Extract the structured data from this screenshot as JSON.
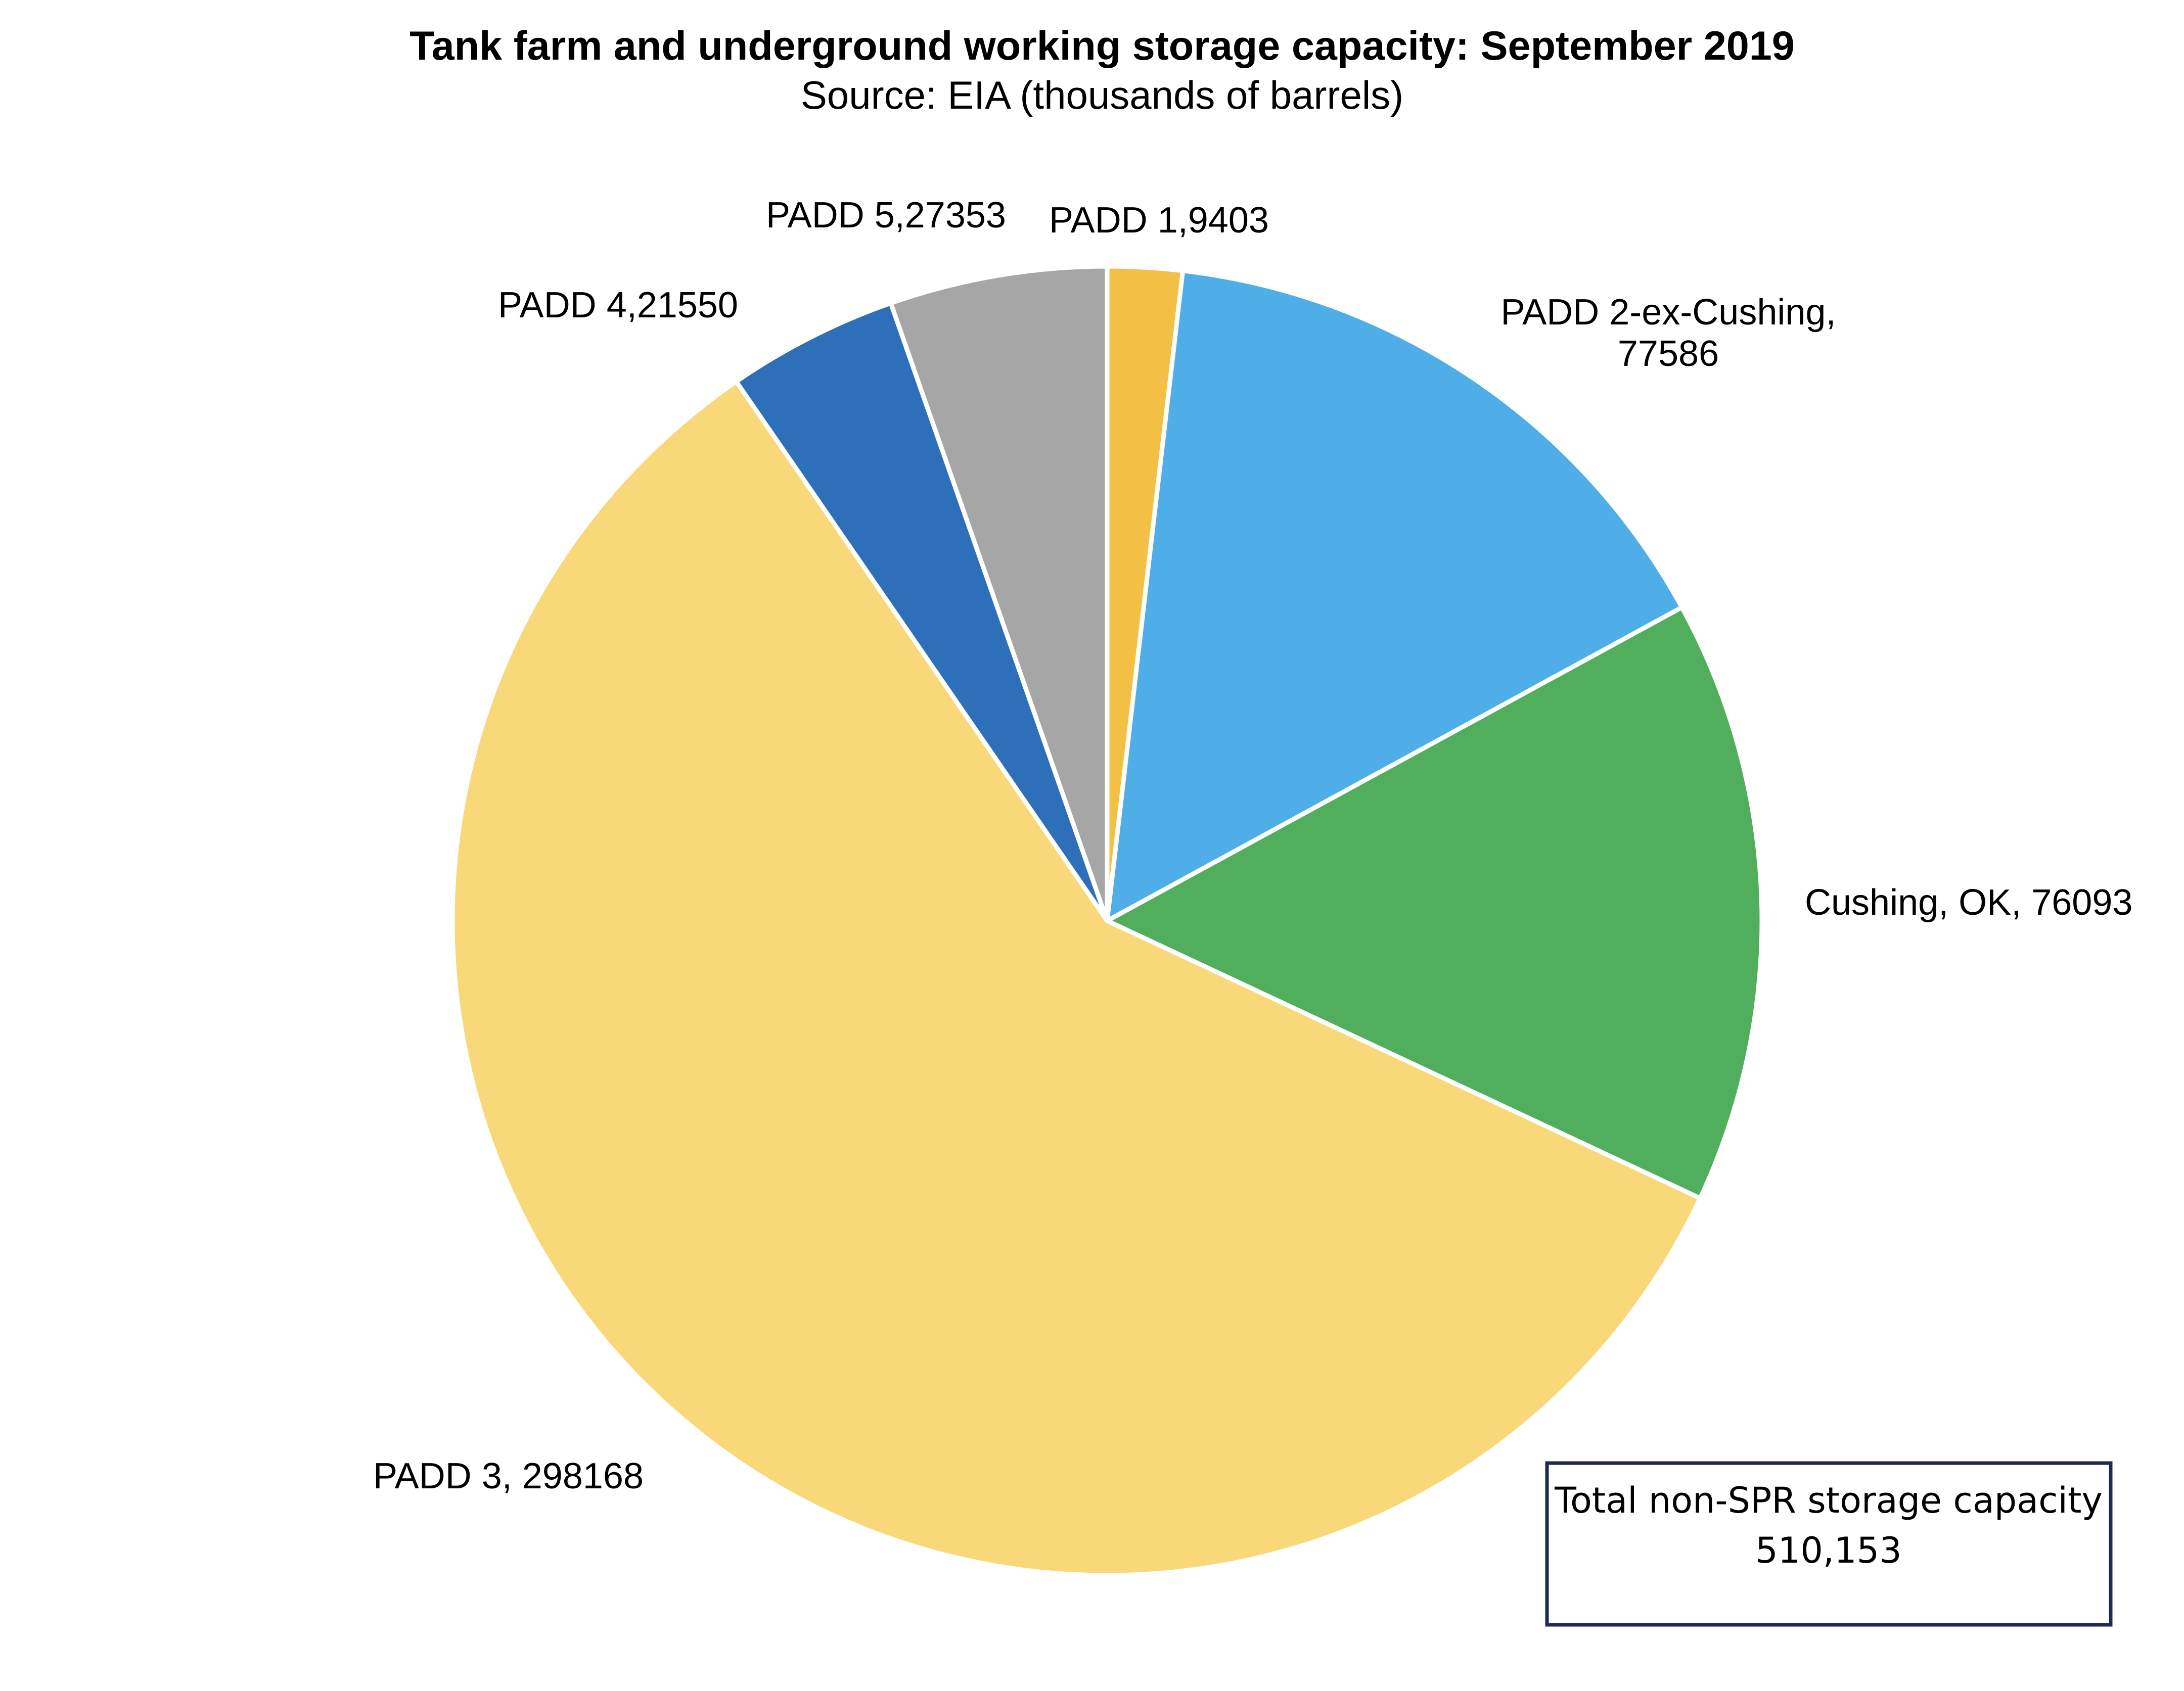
{
  "chart_data": {
    "type": "pie",
    "title": "Tank farm and underground working storage capacity: September 2019",
    "subtitle": "Source: EIA (thousands of barrels)",
    "start_angle_deg": 0,
    "direction": "clockwise",
    "slices": [
      {
        "name": "PADD 1",
        "value": 9403,
        "label_lines": [
          "PADD 1,9403"
        ],
        "color": "#F4BF45"
      },
      {
        "name": "PADD 2-ex-Cushing",
        "value": 77586,
        "label_lines": [
          "PADD 2-ex-Cushing,",
          "77586"
        ],
        "color": "#4FAEE8"
      },
      {
        "name": "Cushing, OK",
        "value": 76093,
        "label_lines": [
          "Cushing, OK, 76093"
        ],
        "color": "#51AE5D"
      },
      {
        "name": "PADD 3",
        "value": 298168,
        "label_lines": [
          "PADD 3, 298168"
        ],
        "color": "#F9D87A"
      },
      {
        "name": "PADD 4",
        "value": 21550,
        "label_lines": [
          "PADD 4,21550"
        ],
        "color": "#2E6FBA"
      },
      {
        "name": "PADD 5",
        "value": 27353,
        "label_lines": [
          "PADD 5,27353"
        ],
        "color": "#A6A6A6"
      }
    ],
    "total_box": {
      "line1": "Total non-SPR storage capacity",
      "line2": "510,153"
    }
  }
}
